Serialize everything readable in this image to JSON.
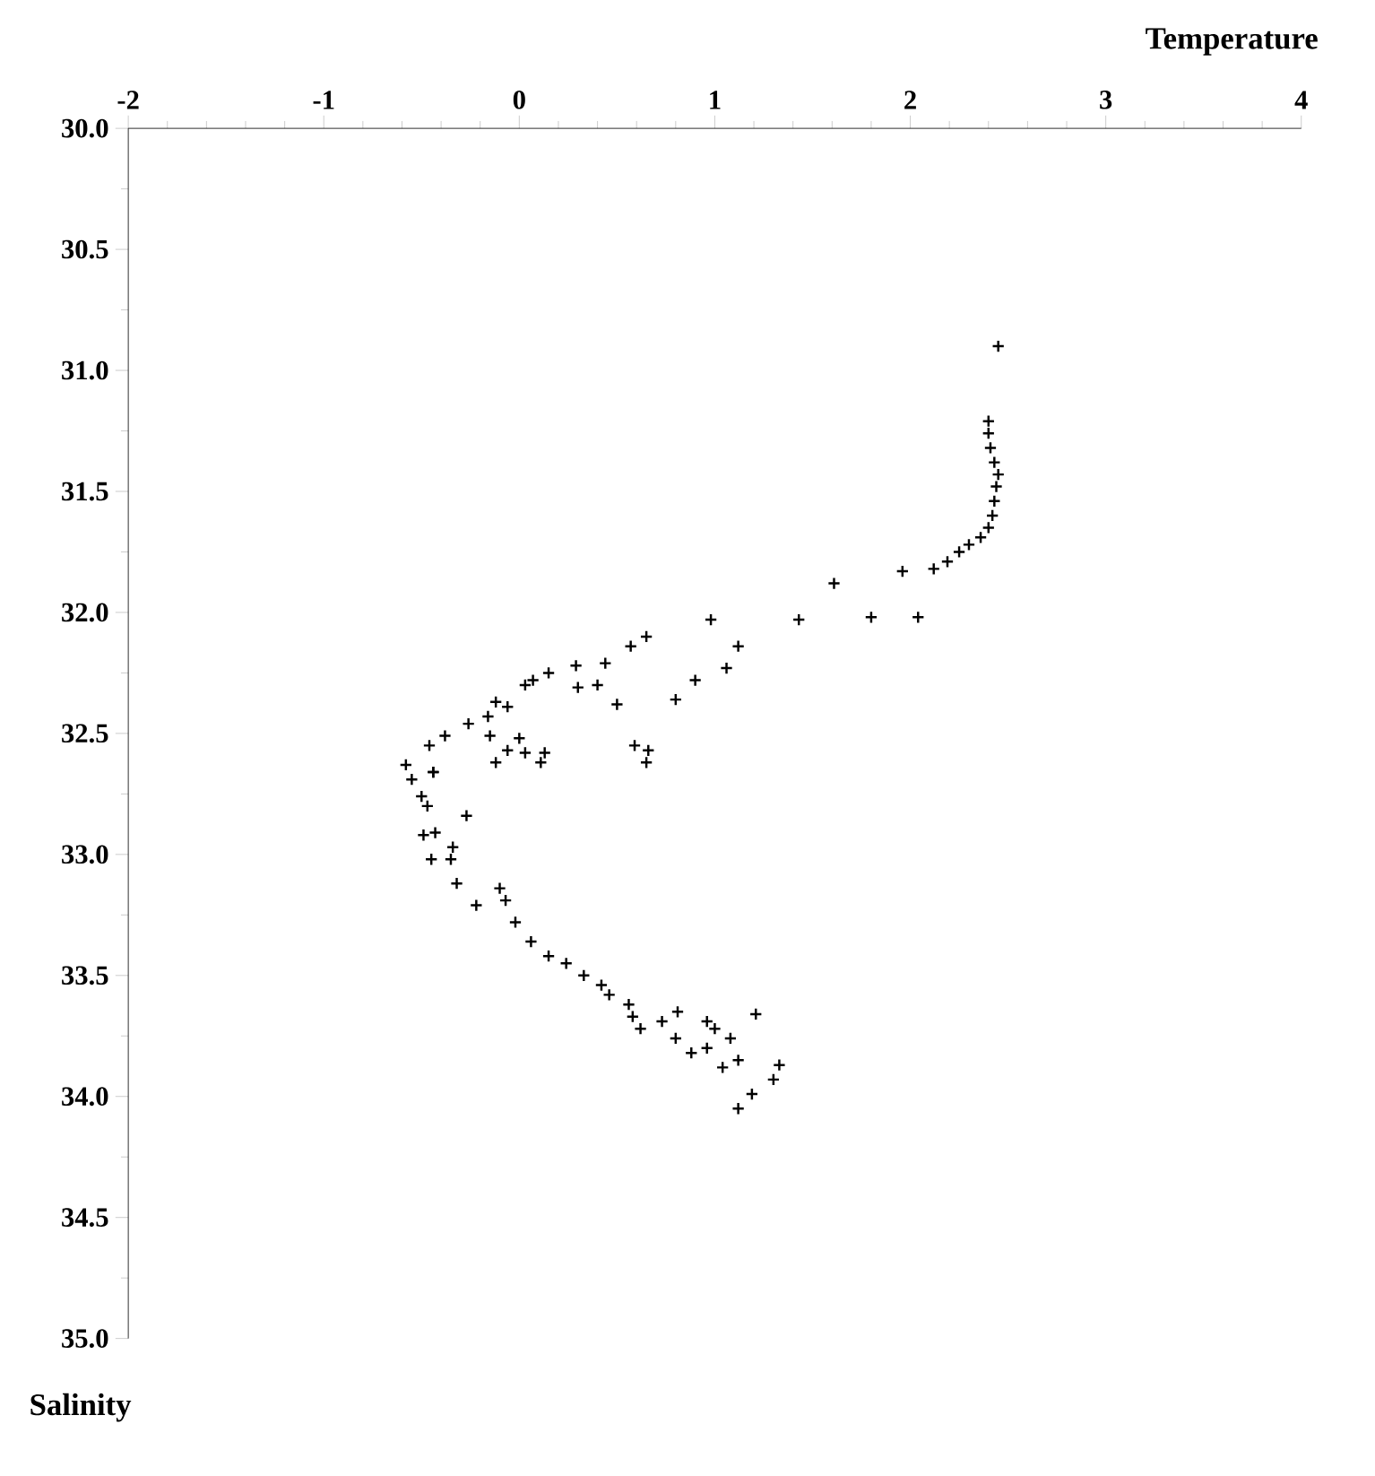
{
  "chart_data": {
    "type": "scatter",
    "xlabel": "Temperature",
    "ylabel": "Salinity",
    "marker": "cross",
    "grid": false,
    "xlim": [
      -2,
      4
    ],
    "xticks": [
      -2,
      -1,
      0,
      1,
      2,
      3,
      4
    ],
    "ylim": [
      35,
      30
    ],
    "yticks": [
      {
        "value": 30,
        "label": "30.0"
      },
      {
        "value": 30.5,
        "label": "30.5"
      },
      {
        "value": 31,
        "label": "31.0"
      },
      {
        "value": 31.5,
        "label": "31.5"
      },
      {
        "value": 32,
        "label": "32.0"
      },
      {
        "value": 32.5,
        "label": "32.5"
      },
      {
        "value": 33,
        "label": "33.0"
      },
      {
        "value": 33.5,
        "label": "33.5"
      },
      {
        "value": 34,
        "label": "34.0"
      },
      {
        "value": 34.5,
        "label": "34.5"
      },
      {
        "value": 35,
        "label": "35.0"
      }
    ],
    "series": [
      {
        "color": "#000000",
        "x": [
          2.45,
          2.4,
          2.4,
          2.41,
          2.43,
          2.45,
          2.44,
          2.43,
          2.42,
          2.4,
          2.36,
          2.3,
          2.25,
          1.61,
          1.96,
          2.12,
          2.19,
          1.8,
          2.04,
          1.43,
          0.98,
          1.12,
          1.06,
          0.9,
          0.8,
          0.5,
          0.65,
          0.57,
          0.44,
          0.29,
          0.4,
          0.3,
          0.15,
          0.07,
          0.03,
          -0.06,
          -0.12,
          -0.16,
          -0.26,
          -0.38,
          -0.46,
          -0.58,
          -0.44,
          -0.15,
          0.0,
          -0.06,
          0.03,
          -0.12,
          0.11,
          0.13,
          0.59,
          0.66,
          0.65,
          -0.55,
          -0.5,
          -0.47,
          -0.44,
          -0.27,
          -0.43,
          -0.49,
          -0.34,
          -0.35,
          -0.45,
          -0.32,
          -0.22,
          -0.1,
          -0.07,
          -0.02,
          0.06,
          0.15,
          0.24,
          0.33,
          0.42,
          0.46,
          0.56,
          0.58,
          0.62,
          0.73,
          0.81,
          0.8,
          0.88,
          0.96,
          1.0,
          0.96,
          1.08,
          1.21,
          1.04,
          1.12,
          1.33,
          1.3,
          1.19,
          1.12
        ],
        "values": [
          30.9,
          31.21,
          31.26,
          31.32,
          31.38,
          31.43,
          31.48,
          31.54,
          31.6,
          31.65,
          31.69,
          31.72,
          31.75,
          31.88,
          31.83,
          31.82,
          31.79,
          32.02,
          32.02,
          32.03,
          32.03,
          32.14,
          32.23,
          32.28,
          32.36,
          32.38,
          32.1,
          32.14,
          32.21,
          32.22,
          32.3,
          32.31,
          32.25,
          32.28,
          32.3,
          32.39,
          32.37,
          32.43,
          32.46,
          32.51,
          32.55,
          32.63,
          32.66,
          32.51,
          32.52,
          32.57,
          32.58,
          32.62,
          32.62,
          32.58,
          32.55,
          32.57,
          32.62,
          32.69,
          32.76,
          32.8,
          32.66,
          32.84,
          32.91,
          32.92,
          32.97,
          33.02,
          33.02,
          33.12,
          33.21,
          33.14,
          33.19,
          33.28,
          33.36,
          33.42,
          33.45,
          33.5,
          33.54,
          33.58,
          33.62,
          33.67,
          33.72,
          33.69,
          33.65,
          33.76,
          33.82,
          33.8,
          33.72,
          33.69,
          33.76,
          33.66,
          33.88,
          33.85,
          33.87,
          33.93,
          33.99,
          34.05
        ]
      }
    ]
  }
}
